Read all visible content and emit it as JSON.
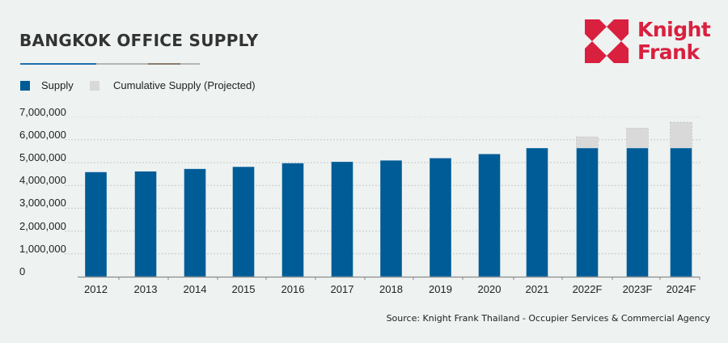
{
  "header": {
    "title": "BANGKOK OFFICE SUPPLY"
  },
  "logo": {
    "line1": "Knight",
    "line2": "Frank",
    "icon": "knight-frank-logo-icon",
    "color": "#d9203f"
  },
  "colors": {
    "supply": "#005c96",
    "projected": "#d9d9d9",
    "background": "#eef2f1",
    "underline_blue": "#1f6fae",
    "underline_gray": "#b4b4b4",
    "underline_brown": "#8c7b6b",
    "gridline": "#c8c8c8",
    "axis": "#8a8a8a"
  },
  "source": "Source: Knight Frank Thailand - Occupier Services & Commercial Agency",
  "chart_data": {
    "type": "bar",
    "stacked": true,
    "title": "BANGKOK OFFICE SUPPLY",
    "xlabel": "",
    "ylabel": "",
    "ylim": [
      0,
      7000000
    ],
    "yticks": [
      "0",
      "1,000,000",
      "2,000,000",
      "3,000,000",
      "4,000,000",
      "5,000,000",
      "6,000,000",
      "7,000,000"
    ],
    "ytick_values": [
      0,
      1000000,
      2000000,
      3000000,
      4000000,
      5000000,
      6000000,
      7000000
    ],
    "grid": true,
    "legend_position": "top-left",
    "categories": [
      "2012",
      "2013",
      "2014",
      "2015",
      "2016",
      "2017",
      "2018",
      "2019",
      "2020",
      "2021",
      "2022F",
      "2023F",
      "2024F"
    ],
    "series": [
      {
        "name": "Supply",
        "values": [
          4590000,
          4620000,
          4730000,
          4820000,
          4980000,
          5040000,
          5100000,
          5200000,
          5380000,
          5640000,
          5640000,
          5640000,
          5640000
        ]
      },
      {
        "name": "Cumulative Supply (Projected)",
        "values": [
          0,
          0,
          0,
          0,
          0,
          0,
          0,
          0,
          0,
          0,
          490000,
          870000,
          1130000
        ],
        "cumulative_totals": [
          null,
          null,
          null,
          null,
          null,
          null,
          null,
          null,
          null,
          null,
          6130000,
          6510000,
          6770000
        ]
      }
    ]
  }
}
